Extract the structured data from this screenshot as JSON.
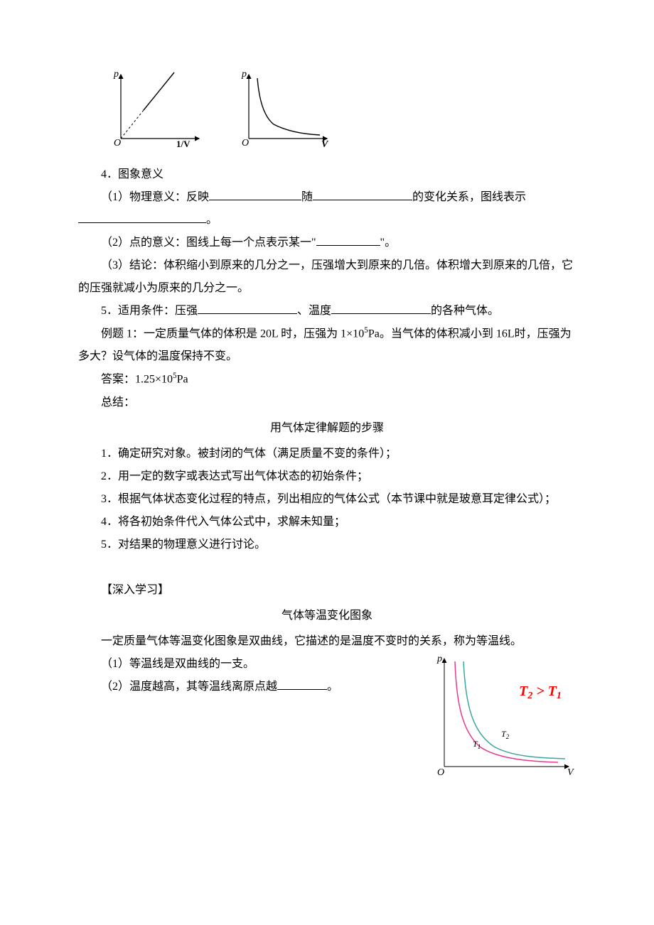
{
  "chart_left": {
    "type": "line",
    "x_label": "1/V",
    "y_label": "p",
    "origin_label": "O",
    "axis_color": "#000000",
    "line_color": "#000000",
    "dashed_color": "#000000",
    "background": "#ffffff",
    "line_width": 1.2,
    "dashed_segment": {
      "from": [
        0,
        0
      ],
      "to": [
        35,
        45
      ]
    },
    "solid_segment": {
      "from": [
        35,
        45
      ],
      "to": [
        85,
        105
      ]
    }
  },
  "chart_right": {
    "type": "line",
    "x_label": "V",
    "y_label": "p",
    "origin_label": "O",
    "axis_color": "#000000",
    "curve_color": "#000000",
    "background": "#ffffff",
    "line_width": 1.2,
    "curve_points": [
      [
        15,
        100
      ],
      [
        20,
        60
      ],
      [
        30,
        35
      ],
      [
        45,
        22
      ],
      [
        70,
        15
      ],
      [
        100,
        12
      ]
    ]
  },
  "s4_heading": "4．图象意义",
  "s4_1_a": "（1）物理意义：反映",
  "s4_1_b": "随",
  "s4_1_c": "的变化关系，图线表示",
  "s4_1_end": "。",
  "blank_w1": 130,
  "blank_w2": 140,
  "blank_w3": 180,
  "s4_2_a": "（2）点的意义：图线上每一个点表示某一\"",
  "s4_2_b": "\"。",
  "blank_w4": 90,
  "s4_3": "（3）结论：体积缩小到原来的几分之一，压强增大到原来的几倍。体积增大到原来的几倍，它的压强就减小为原来的几分之一。",
  "s5_a": "5．适用条件：压强",
  "s5_b": "、温度",
  "s5_c": "的各种气体。",
  "blank_w5": 140,
  "blank_w6": 140,
  "ex1_a": "例题 1：一定质量气体的体积是 20L 时，压强为 1×10",
  "ex1_sup": "5",
  "ex1_b": "Pa。当气体的体积减小到 16L时，压强为多大？设气体的温度保持不变。",
  "ans_a": "答案：1.25×10",
  "ans_sup": "5",
  "ans_b": "Pa",
  "summary": "总结：",
  "steps_title": "用气体定律解题的步骤",
  "step1": "1．确定研究对象。被封闭的气体（满足质量不变的条件）；",
  "step2": "2．用一定的数字或表达式写出气体状态的初始条件；",
  "step3": "3．根据气体状态变化过程的特点，列出相应的气体公式（本节课中就是玻意耳定律公式）；",
  "step4": "4．将各初始条件代入气体公式中，求解未知量；",
  "step5": "5．对结果的物理意义进行讨论。",
  "deep_heading": "【深入学习】",
  "iso_title": "气体等温变化图象",
  "iso_intro": "一定质量气体等温变化图象是双曲线，它描述的是温度不变时的关系，称为等温线。",
  "iso_1": "（1）等温线是双曲线的一支。",
  "iso_2a": "（2）温度越高，其等温线离原点越",
  "iso_2b": "。",
  "blank_w7": 70,
  "iso_chart": {
    "type": "line",
    "x_label": "V",
    "y_label": "p",
    "origin_label": "O",
    "axis_color": "#000000",
    "background": "#ffffff",
    "grid": false,
    "curves": [
      {
        "label": "T",
        "sub": "1",
        "color": "#e63990",
        "line_width": 1.5,
        "points": [
          [
            22,
            150
          ],
          [
            26,
            95
          ],
          [
            33,
            62
          ],
          [
            45,
            42
          ],
          [
            65,
            30
          ],
          [
            100,
            22
          ],
          [
            150,
            18
          ]
        ]
      },
      {
        "label": "T",
        "sub": "2",
        "color": "#3aa6a0",
        "line_width": 1.5,
        "points": [
          [
            30,
            150
          ],
          [
            35,
            100
          ],
          [
            43,
            70
          ],
          [
            58,
            50
          ],
          [
            80,
            38
          ],
          [
            115,
            30
          ],
          [
            160,
            25
          ]
        ]
      }
    ],
    "inequality": "T₂ > T₁",
    "inequality_color": "#ff0000",
    "label_fontsize": 12
  }
}
